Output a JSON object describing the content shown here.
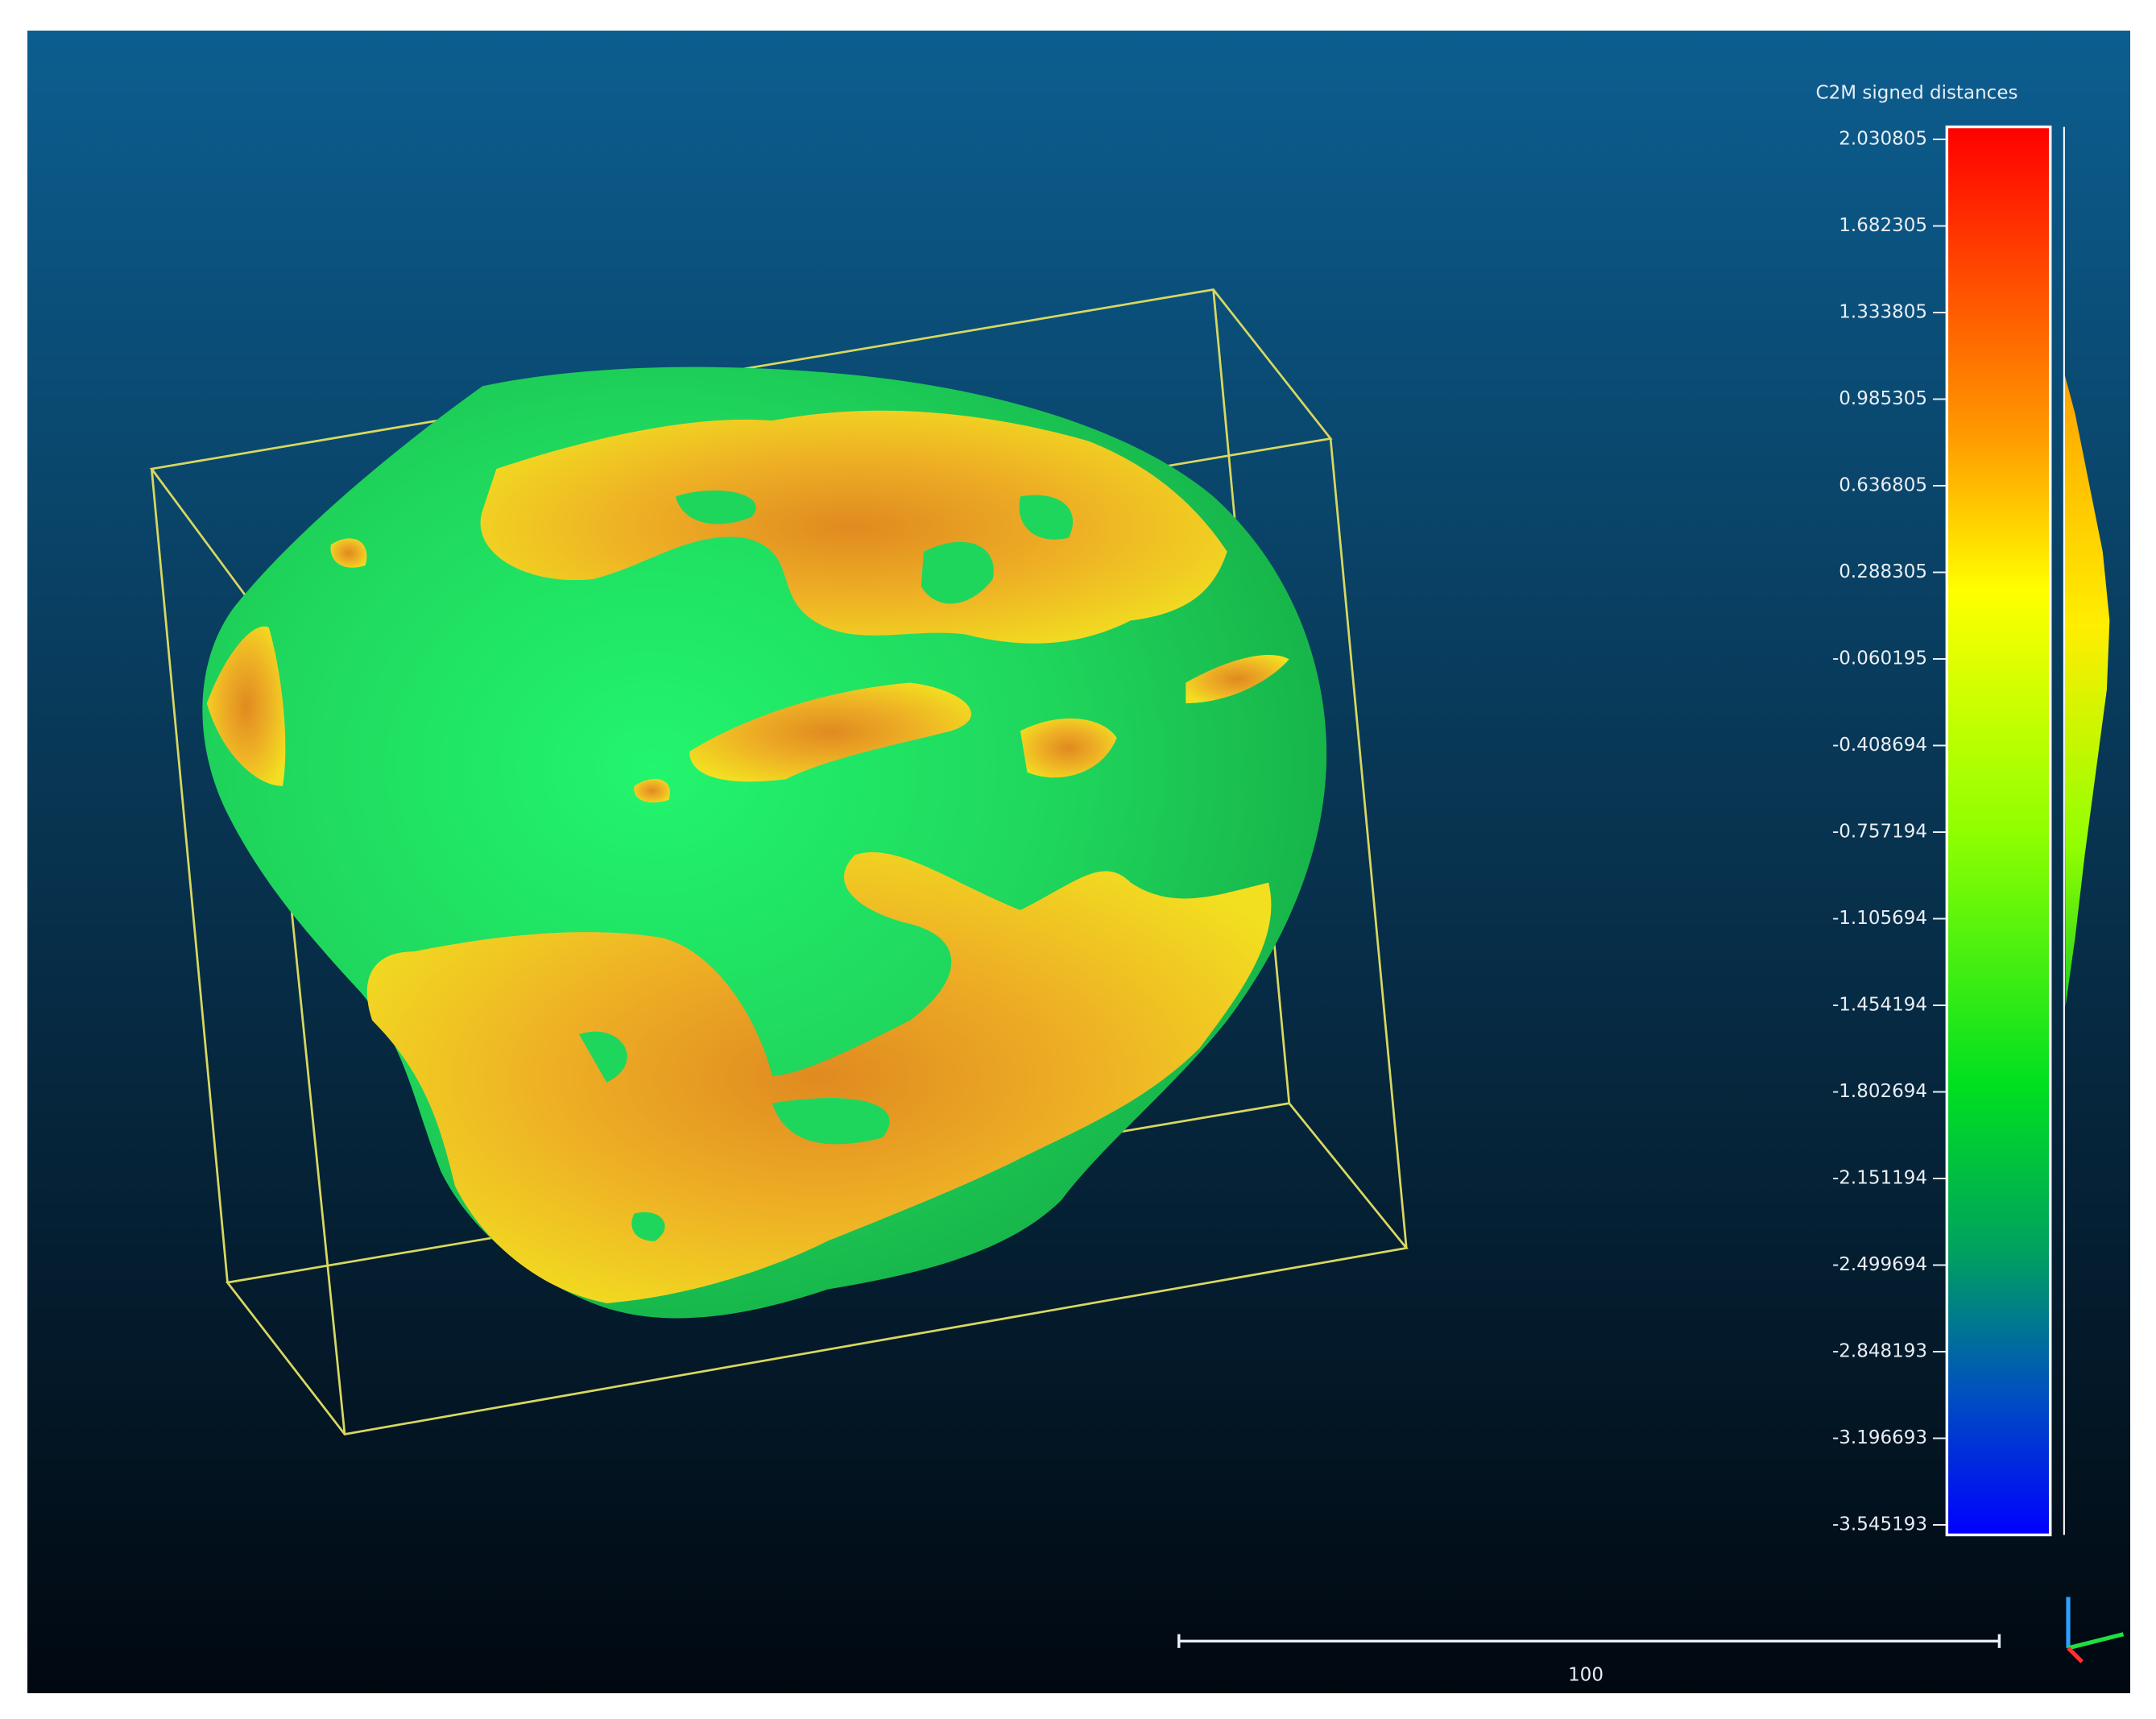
{
  "scalar_field": {
    "title": "C2M signed distances",
    "ticks": [
      "2.030805",
      "1.682305",
      "1.333805",
      "0.985305",
      "0.636805",
      "0.288305",
      "-0.060195",
      "-0.408694",
      "-0.757194",
      "-1.105694",
      "-1.454194",
      "-1.802694",
      "-2.151194",
      "-2.499694",
      "-2.848193",
      "-3.196693",
      "-3.545193"
    ]
  },
  "scale_bar": {
    "label": "100"
  }
}
